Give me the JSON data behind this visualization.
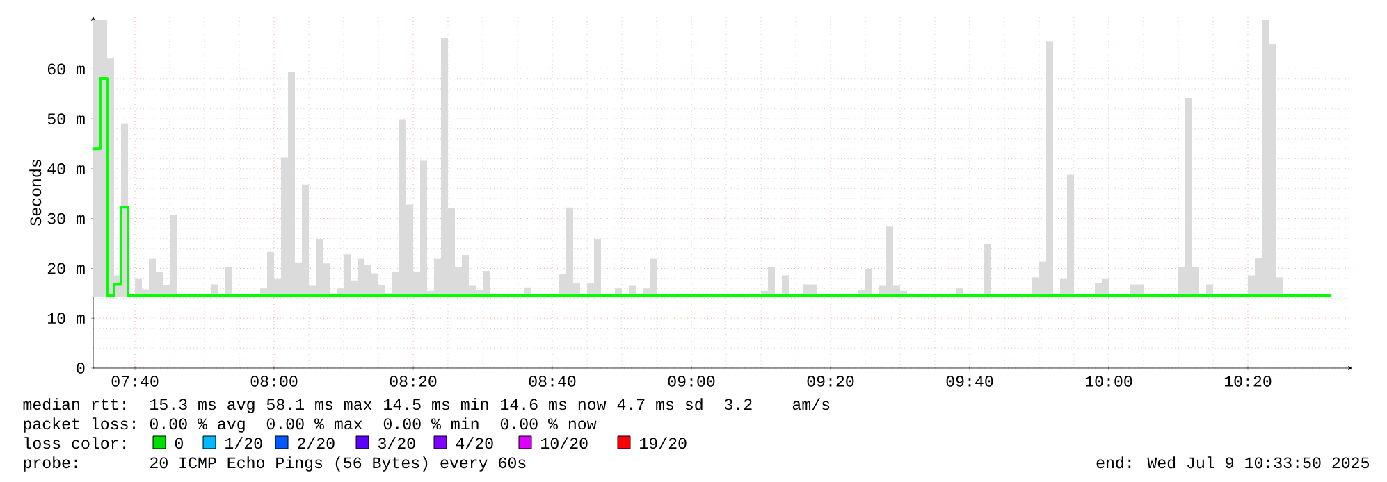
{
  "chart_data": {
    "type": "step",
    "ylabel": "Seconds",
    "xlim": [
      "2025-07-09T07:34",
      "2025-07-09T10:35"
    ],
    "xticks": [
      {
        "value": "2025-07-09T07:40",
        "label": "07:40"
      },
      {
        "value": "2025-07-09T08:00",
        "label": "08:00"
      },
      {
        "value": "2025-07-09T08:20",
        "label": "08:20"
      },
      {
        "value": "2025-07-09T08:40",
        "label": "08:40"
      },
      {
        "value": "2025-07-09T09:00",
        "label": "09:00"
      },
      {
        "value": "2025-07-09T09:20",
        "label": "09:20"
      },
      {
        "value": "2025-07-09T09:40",
        "label": "09:40"
      },
      {
        "value": "2025-07-09T10:00",
        "label": "10:00"
      },
      {
        "value": "2025-07-09T10:20",
        "label": "10:20"
      }
    ],
    "ylim": [
      0,
      70.5
    ],
    "yticks": [
      0,
      {
        "value": 10,
        "label": "10 m"
      },
      {
        "value": 20,
        "label": "20 m"
      },
      {
        "value": 30,
        "label": "30 m"
      },
      {
        "value": 40,
        "label": "40 m"
      },
      {
        "value": 50,
        "label": "50 m"
      },
      {
        "value": 60,
        "label": "60 m"
      }
    ],
    "grid": true,
    "series": [
      {
        "color": "#00ff00",
        "x": [
          "2025-07-09T07:34",
          "2025-07-09T07:35",
          "2025-07-09T07:36",
          "2025-07-09T07:37",
          "2025-07-09T07:38",
          "2025-07-09T07:39",
          "2025-07-09T07:40",
          "2025-07-09T07:41",
          "2025-07-09T07:42",
          "2025-07-09T07:43",
          "2025-07-09T07:44",
          "2025-07-09T07:45",
          "2025-07-09T07:46",
          "2025-07-09T07:51",
          "2025-07-09T07:52",
          "2025-07-09T07:53",
          "2025-07-09T07:54",
          "2025-07-09T07:58",
          "2025-07-09T07:59",
          "2025-07-09T08:00",
          "2025-07-09T08:01",
          "2025-07-09T08:02",
          "2025-07-09T08:03",
          "2025-07-09T08:04",
          "2025-07-09T08:05",
          "2025-07-09T08:06",
          "2025-07-09T08:07",
          "2025-07-09T08:08",
          "2025-07-09T08:09",
          "2025-07-09T08:10",
          "2025-07-09T08:11",
          "2025-07-09T08:12",
          "2025-07-09T08:13",
          "2025-07-09T08:14",
          "2025-07-09T08:15",
          "2025-07-09T08:16",
          "2025-07-09T08:17",
          "2025-07-09T08:18",
          "2025-07-09T08:19",
          "2025-07-09T08:20",
          "2025-07-09T08:21",
          "2025-07-09T08:22",
          "2025-07-09T08:23",
          "2025-07-09T08:24",
          "2025-07-09T08:25",
          "2025-07-09T08:26",
          "2025-07-09T08:27",
          "2025-07-09T08:28",
          "2025-07-09T08:29",
          "2025-07-09T08:30",
          "2025-07-09T08:31",
          "2025-07-09T08:36",
          "2025-07-09T08:37",
          "2025-07-09T08:41",
          "2025-07-09T08:42",
          "2025-07-09T08:43",
          "2025-07-09T08:44",
          "2025-07-09T08:45",
          "2025-07-09T08:46",
          "2025-07-09T08:47",
          "2025-07-09T08:49",
          "2025-07-09T08:50",
          "2025-07-09T08:51",
          "2025-07-09T08:52",
          "2025-07-09T08:53",
          "2025-07-09T08:54",
          "2025-07-09T08:55",
          "2025-07-09T09:10",
          "2025-07-09T09:11",
          "2025-07-09T09:12",
          "2025-07-09T09:13",
          "2025-07-09T09:14",
          "2025-07-09T09:16",
          "2025-07-09T09:18",
          "2025-07-09T09:24",
          "2025-07-09T09:25",
          "2025-07-09T09:26",
          "2025-07-09T09:27",
          "2025-07-09T09:28",
          "2025-07-09T09:29",
          "2025-07-09T09:30",
          "2025-07-09T09:31",
          "2025-07-09T09:38",
          "2025-07-09T09:39",
          "2025-07-09T09:42",
          "2025-07-09T09:43",
          "2025-07-09T09:49",
          "2025-07-09T09:50",
          "2025-07-09T09:51",
          "2025-07-09T09:52",
          "2025-07-09T09:53",
          "2025-07-09T09:54",
          "2025-07-09T09:55",
          "2025-07-09T09:58",
          "2025-07-09T09:59",
          "2025-07-09T10:00",
          "2025-07-09T10:03",
          "2025-07-09T10:05",
          "2025-07-09T10:10",
          "2025-07-09T10:11",
          "2025-07-09T10:12",
          "2025-07-09T10:13",
          "2025-07-09T10:14",
          "2025-07-09T10:15",
          "2025-07-09T10:20",
          "2025-07-09T10:21",
          "2025-07-09T10:22",
          "2025-07-09T10:23",
          "2025-07-09T10:24",
          "2025-07-09T10:25",
          "2025-07-09T10:32"
        ],
        "values": [
          44,
          58.1,
          14.5,
          16.8,
          32.3,
          14.6,
          14.6,
          14.6,
          14.6,
          14.6,
          14.6,
          14.6,
          14.6,
          14.6,
          14.6,
          14.6,
          14.6,
          14.6,
          14.6,
          14.6,
          14.6,
          14.6,
          14.6,
          14.6,
          14.6,
          14.6,
          14.6,
          14.6,
          14.6,
          14.6,
          14.6,
          14.6,
          14.6,
          14.6,
          14.6,
          14.6,
          14.6,
          14.6,
          14.6,
          14.6,
          14.6,
          14.6,
          14.6,
          14.6,
          14.6,
          14.6,
          14.6,
          14.6,
          14.6,
          14.6,
          14.6,
          14.6,
          14.6,
          14.6,
          14.6,
          14.6,
          14.6,
          14.6,
          14.6,
          14.6,
          14.6,
          14.6,
          14.6,
          14.6,
          14.6,
          14.6,
          14.6,
          14.6,
          14.6,
          14.6,
          14.6,
          14.6,
          14.6,
          14.6,
          14.6,
          14.6,
          14.6,
          14.6,
          14.6,
          14.6,
          14.6,
          14.6,
          14.6,
          14.6,
          14.6,
          14.6,
          14.6,
          14.6,
          14.6,
          14.6,
          14.6,
          14.6,
          14.6,
          14.6,
          14.6,
          14.6,
          14.6,
          14.6,
          14.6,
          14.6,
          14.6,
          14.6,
          14.6,
          14.6,
          14.6,
          14.6,
          14.6,
          14.6,
          14.6,
          14.6,
          14.6
        ],
        "lower": [
          14.3,
          14.3,
          14.3,
          14.3,
          14.3,
          14.3,
          14.3,
          14.3,
          14.3,
          14.3,
          14.3,
          14.3,
          14.3,
          14.3,
          14.3,
          14.3,
          14.3,
          14.3,
          14.3,
          14.3,
          14.3,
          14.3,
          14.3,
          14.3,
          14.3,
          14.3,
          14.3,
          14.3,
          14.3,
          14.3,
          14.3,
          14.3,
          14.3,
          14.3,
          14.3,
          14.3,
          14.3,
          14.3,
          14.3,
          14.3,
          14.3,
          14.3,
          14.3,
          14.3,
          14.3,
          14.3,
          14.3,
          14.3,
          14.3,
          14.3,
          14.3,
          14.3,
          14.3,
          14.3,
          14.3,
          14.3,
          14.3,
          14.3,
          14.3,
          14.3,
          14.3,
          14.3,
          14.3,
          14.3,
          14.3,
          14.3,
          14.3,
          14.3,
          14.3,
          14.3,
          14.3,
          14.3,
          14.3,
          14.3,
          14.3,
          14.3,
          14.3,
          14.3,
          14.3,
          14.3,
          14.3,
          14.3,
          14.3,
          14.3,
          14.3,
          14.3,
          14.3,
          14.3,
          14.3,
          14.3,
          14.3,
          14.3,
          14.3,
          14.3,
          14.3,
          14.3,
          14.3,
          14.3,
          14.3,
          14.3,
          14.3,
          14.3,
          14.3,
          14.3,
          14.3,
          14.3,
          14.3,
          14.3,
          14.3,
          14.3,
          14.3
        ],
        "upper": [
          69.8,
          69.8,
          62.1,
          18.6,
          49.1,
          14.8,
          18,
          15.8,
          21.9,
          19.3,
          16.7,
          30.7,
          14.8,
          16.8,
          14.8,
          20.3,
          14.8,
          16,
          23.3,
          18,
          42.3,
          59.5,
          21.2,
          36.8,
          16.5,
          25.9,
          21,
          14.8,
          16,
          22.8,
          17.6,
          21.9,
          20.6,
          19,
          16.7,
          15,
          19.3,
          49.8,
          32.8,
          19.3,
          41.6,
          15.5,
          21.9,
          66.3,
          32.1,
          20.2,
          22.7,
          16.5,
          15.6,
          19.5,
          14.8,
          16.2,
          14.8,
          18.8,
          32.2,
          17,
          14.8,
          17,
          25.9,
          14.8,
          16,
          14.8,
          16.5,
          14.8,
          16,
          21.9,
          14.8,
          15.5,
          20.3,
          14.8,
          18.6,
          14.8,
          16.8,
          14.8,
          15.6,
          19.8,
          14.8,
          16.5,
          28.4,
          16.5,
          15.5,
          14.8,
          16,
          14.8,
          24.8,
          14.8,
          18.2,
          21.4,
          65.6,
          14.8,
          18,
          38.8,
          14.8,
          17,
          18,
          14.8,
          16.8,
          14.8,
          20.3,
          54.2,
          20.3,
          14.8,
          16.8,
          14.8,
          18.6,
          22,
          69.8,
          65,
          18.2,
          14.8,
          14.8
        ]
      }
    ],
    "annotations": [
      "median rtt:",
      "15.3 ms avg",
      "58.1 ms max",
      "14.5 ms min",
      "14.6 ms now",
      "4.7 ms sd",
      "3.2",
      "am/s",
      "packet loss:",
      "0.00 % avg",
      "0.00 % max",
      "0.00 % min",
      "0.00 % now",
      "loss color:",
      "0",
      "1/20",
      "2/20",
      "3/20",
      "4/20",
      "10/20",
      "19/20",
      "probe:",
      "20 ICMP Echo Pings (56 Bytes) every 60s",
      "end: Wed Jul  9 10:33:50 2025"
    ]
  }
}
